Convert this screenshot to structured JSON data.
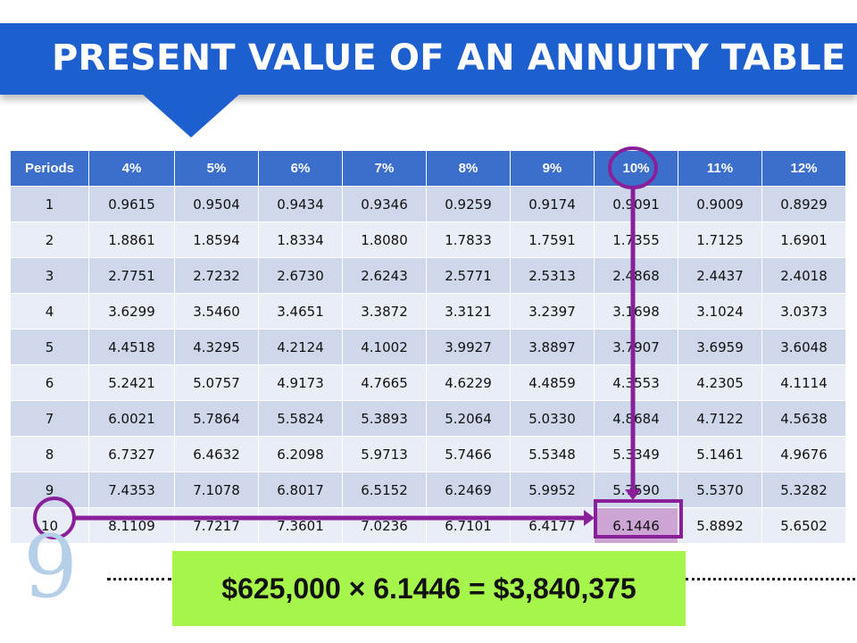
{
  "title": "PRESENT VALUE OF AN ANNUITY TABLE",
  "table": {
    "headers": [
      "Periods",
      "4%",
      "5%",
      "6%",
      "7%",
      "8%",
      "9%",
      "10%",
      "11%",
      "12%"
    ],
    "rows": [
      [
        "1",
        "0.9615",
        "0.9504",
        "0.9434",
        "0.9346",
        "0.9259",
        "0.9174",
        "0.9091",
        "0.9009",
        "0.8929"
      ],
      [
        "2",
        "1.8861",
        "1.8594",
        "1.8334",
        "1.8080",
        "1.7833",
        "1.7591",
        "1.7355",
        "1.7125",
        "1.6901"
      ],
      [
        "3",
        "2.7751",
        "2.7232",
        "2.6730",
        "2.6243",
        "2.5771",
        "2.5313",
        "2.4868",
        "2.4437",
        "2.4018"
      ],
      [
        "4",
        "3.6299",
        "3.5460",
        "3.4651",
        "3.3872",
        "3.3121",
        "3.2397",
        "3.1698",
        "3.1024",
        "3.0373"
      ],
      [
        "5",
        "4.4518",
        "4.3295",
        "4.2124",
        "4.1002",
        "3.9927",
        "3.8897",
        "3.7907",
        "3.6959",
        "3.6048"
      ],
      [
        "6",
        "5.2421",
        "5.0757",
        "4.9173",
        "4.7665",
        "4.6229",
        "4.4859",
        "4.3553",
        "4.2305",
        "4.1114"
      ],
      [
        "7",
        "6.0021",
        "5.7864",
        "5.5824",
        "5.3893",
        "5.2064",
        "5.0330",
        "4.8684",
        "4.7122",
        "4.5638"
      ],
      [
        "8",
        "6.7327",
        "6.4632",
        "6.2098",
        "5.9713",
        "5.7466",
        "5.5348",
        "5.3349",
        "5.1461",
        "4.9676"
      ],
      [
        "9",
        "7.4353",
        "7.1078",
        "6.8017",
        "6.5152",
        "6.2469",
        "5.9952",
        "5.7590",
        "5.5370",
        "5.3282"
      ],
      [
        "10",
        "8.1109",
        "7.7217",
        "7.3601",
        "7.0236",
        "6.7101",
        "6.4177",
        "6.1446",
        "5.8892",
        "5.6502"
      ]
    ]
  },
  "page_number": "9",
  "formula": "$625,000 × 6.1446 = $3,840,375",
  "colors": {
    "banner": "#1d5fcf",
    "header_row": "#3b6fcb",
    "annotation": "#8a1f9a",
    "highlight": "#cda5d4",
    "formula_box": "#a6f54a"
  }
}
